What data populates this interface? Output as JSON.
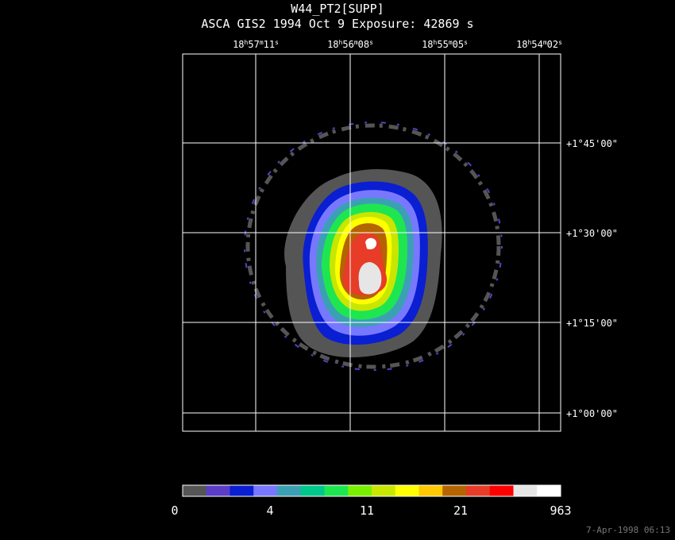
{
  "header": {
    "title": "W44_PT2[SUPP]",
    "subtitle": "ASCA GIS2   1994 Oct  9    Exposure: 42869 s"
  },
  "ra_labels": [
    {
      "h": "18",
      "m": "57",
      "s": "11"
    },
    {
      "h": "18",
      "m": "56",
      "s": "08"
    },
    {
      "h": "18",
      "m": "55",
      "s": "05"
    },
    {
      "h": "18",
      "m": "54",
      "s": "02"
    }
  ],
  "dec_labels": [
    "+1°45'00\"",
    "+1°30'00\"",
    "+1°15'00\"",
    "+1°00'00\""
  ],
  "colorbar": {
    "colors": [
      "#555555",
      "#5a3ec8",
      "#0a1ed2",
      "#7878ff",
      "#3ca0b4",
      "#00c88c",
      "#1ee650",
      "#78f000",
      "#c8e600",
      "#ffff00",
      "#ffc800",
      "#b46400",
      "#e63c28",
      "#ff0000",
      "#e6e6e6",
      "#ffffff"
    ],
    "tick_labels": [
      "0",
      "4",
      "11",
      "21",
      "963"
    ]
  },
  "footer": {
    "timestamp": "7-Apr-1998 06:13"
  }
}
